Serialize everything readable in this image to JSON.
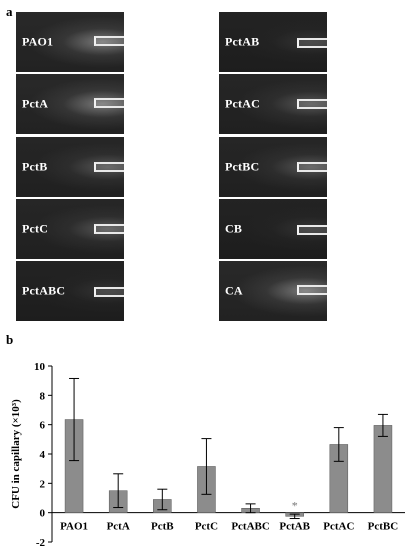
{
  "panel_a": {
    "letter": "a",
    "tiles": [
      {
        "label": "PAO1",
        "col": 0,
        "row": 0,
        "tone": "bright"
      },
      {
        "label": "PctAB",
        "col": 1,
        "row": 0,
        "tone": "dim"
      },
      {
        "label": "PctA",
        "col": 0,
        "row": 1,
        "tone": "bright"
      },
      {
        "label": "PctAC",
        "col": 1,
        "row": 1,
        "tone": "normal"
      },
      {
        "label": "PctB",
        "col": 0,
        "row": 2,
        "tone": "normal"
      },
      {
        "label": "PctBC",
        "col": 1,
        "row": 2,
        "tone": "normal"
      },
      {
        "label": "PctC",
        "col": 0,
        "row": 3,
        "tone": "normal"
      },
      {
        "label": "CB",
        "col": 1,
        "row": 3,
        "tone": "dim"
      },
      {
        "label": "PctABC",
        "col": 0,
        "row": 4,
        "tone": "dim"
      },
      {
        "label": "CA",
        "col": 1,
        "row": 4,
        "tone": "bright"
      }
    ]
  },
  "panel_b": {
    "letter": "b"
  },
  "chart_data": {
    "type": "bar",
    "categories": [
      "PAO1",
      "PctA",
      "PctB",
      "PctC",
      "PctABC",
      "PctAB",
      "PctAC",
      "PctBC"
    ],
    "values": [
      6.35,
      1.5,
      0.9,
      3.15,
      0.3,
      -0.25,
      4.65,
      5.95
    ],
    "errors": [
      2.8,
      1.15,
      0.7,
      1.9,
      0.3,
      0.15,
      1.15,
      0.75
    ],
    "ylabel": "CFU in capillary (×10³)",
    "ylim": [
      -2,
      10
    ],
    "yticks": [
      -2,
      0,
      2,
      4,
      6,
      8,
      10
    ],
    "annotations": [
      {
        "category": "PctAB",
        "text": "*"
      }
    ],
    "bar_color": "#8c8c8c",
    "grid": false,
    "legend": "none"
  }
}
